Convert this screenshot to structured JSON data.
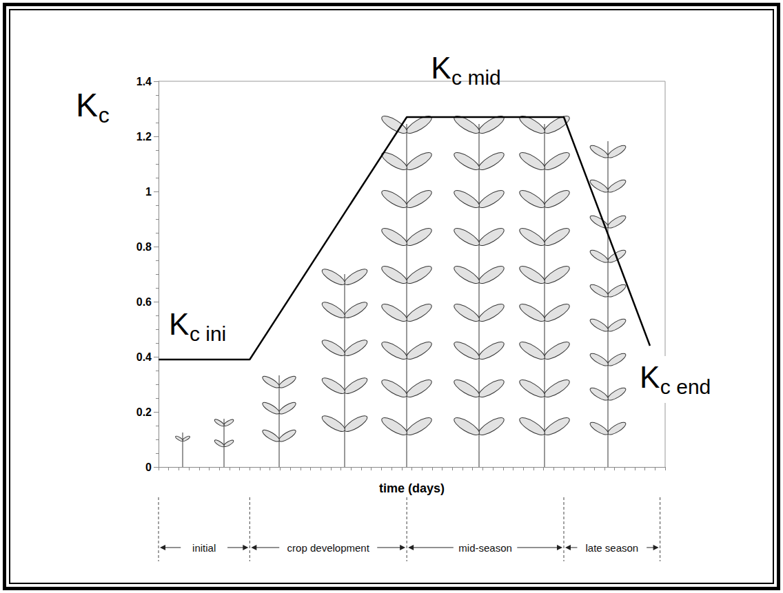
{
  "chart_data": {
    "type": "line",
    "y_label": "Kc",
    "x_label": "time (days)",
    "x": [
      0,
      18,
      49,
      80,
      97
    ],
    "values": [
      0.39,
      0.39,
      1.27,
      1.27,
      0.44
    ],
    "color": "#000000",
    "marker": "none",
    "line_style": "solid",
    "xlim": [
      0,
      100
    ],
    "xticks": [
      0,
      2,
      4,
      6,
      8,
      10,
      12,
      14,
      16,
      18,
      20,
      22,
      24,
      26,
      28,
      30,
      32,
      34,
      36,
      38,
      40,
      42,
      44,
      46,
      48,
      50,
      52,
      54,
      56,
      58,
      60,
      62,
      64,
      66,
      68,
      70,
      72,
      74,
      76,
      78,
      80,
      82,
      84,
      86,
      88,
      90,
      92,
      94,
      96,
      98,
      100
    ],
    "ylim": [
      0,
      1.4
    ],
    "yticks": [
      0,
      0.2,
      0.4,
      0.6,
      0.8,
      1,
      1.2,
      1.4
    ],
    "grid": false,
    "tick_labels": "y",
    "annotations": [
      "Kc ini",
      "Kc mid",
      "Kc end"
    ],
    "stages": [
      {
        "label": "initial",
        "start": 0,
        "end": 18
      },
      {
        "label": "crop development",
        "start": 18,
        "end": 49
      },
      {
        "label": "mid-season",
        "start": 49,
        "end": 80
      },
      {
        "label": "late season",
        "start": 80,
        "end": 99
      }
    ]
  }
}
